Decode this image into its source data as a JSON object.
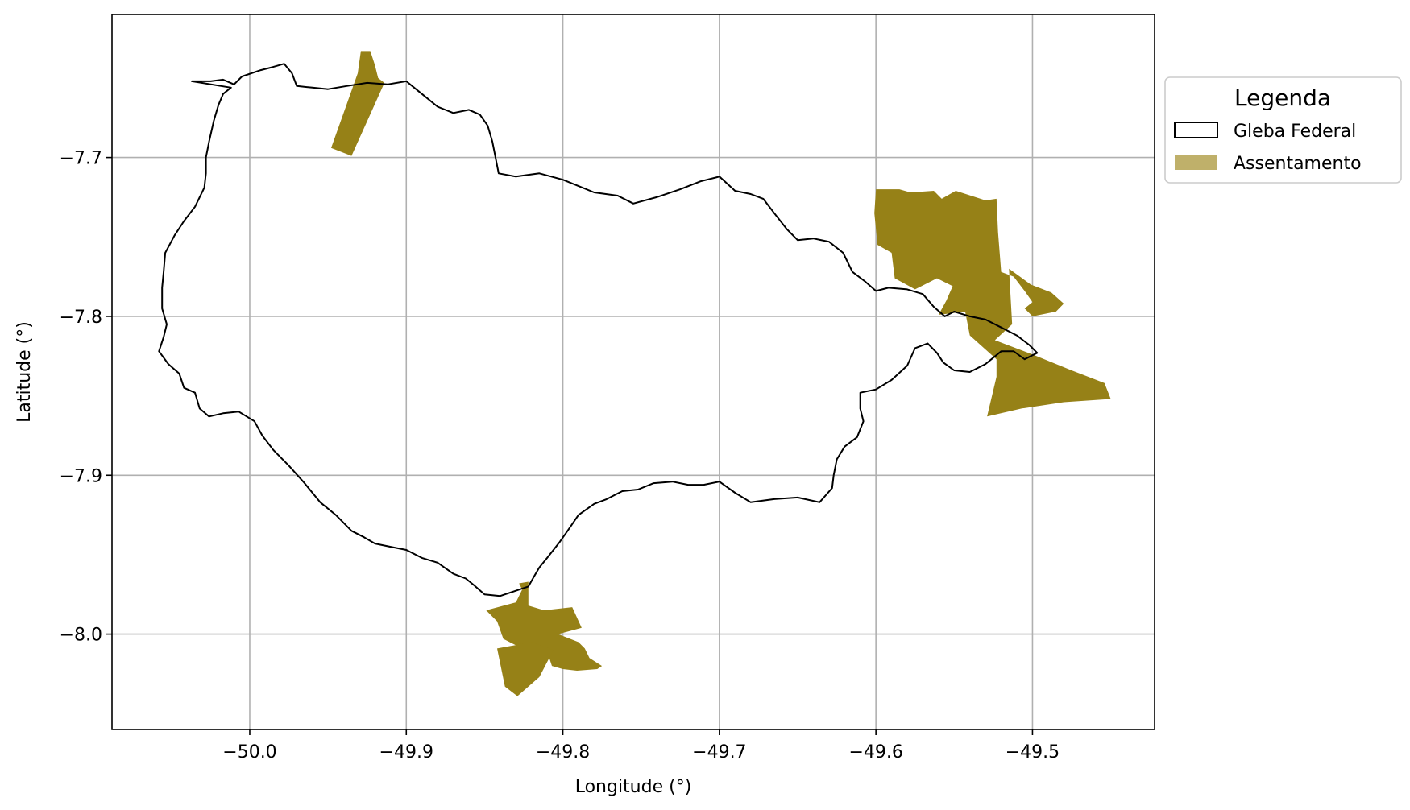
{
  "map": {
    "xlabel": "Longitude (°)",
    "ylabel": "Latitude (°)",
    "xlim": [
      -50.088,
      -49.422
    ],
    "ylim": [
      -8.06,
      -7.61
    ],
    "x_ticks": [
      -50.0,
      -49.9,
      -49.8,
      -49.7,
      -49.6,
      -49.5
    ],
    "x_tick_labels": [
      "−50.0",
      "−49.9",
      "−49.8",
      "−49.7",
      "−49.6",
      "−49.5"
    ],
    "y_ticks": [
      -7.7,
      -7.8,
      -7.9,
      -8.0
    ],
    "y_tick_labels": [
      "−7.7",
      "−7.8",
      "−7.9",
      "−8.0"
    ],
    "grid": true,
    "colors": {
      "gleba_edge": "#000000",
      "gleba_fill": "none",
      "assentamento_fill": "#968117",
      "assentamento_legend_fill": "#bfb06a",
      "grid": "#b0b0b0"
    }
  },
  "legend": {
    "title": "Legenda",
    "placement": "outside-right-top",
    "items": [
      {
        "label": "Gleba Federal",
        "style": "outline"
      },
      {
        "label": "Assentamento",
        "style": "filled"
      }
    ]
  },
  "gleba_federal": [
    [
      -50.037,
      -7.652
    ],
    [
      -50.025,
      -7.652
    ],
    [
      -50.017,
      -7.651
    ],
    [
      -50.01,
      -7.654
    ],
    [
      -50.005,
      -7.649
    ],
    [
      -49.993,
      -7.645
    ],
    [
      -49.985,
      -7.643
    ],
    [
      -49.978,
      -7.641
    ],
    [
      -49.973,
      -7.647
    ],
    [
      -49.97,
      -7.655
    ],
    [
      -49.96,
      -7.656
    ],
    [
      -49.95,
      -7.657
    ],
    [
      -49.938,
      -7.655
    ],
    [
      -49.925,
      -7.653
    ],
    [
      -49.912,
      -7.654
    ],
    [
      -49.9,
      -7.652
    ],
    [
      -49.89,
      -7.66
    ],
    [
      -49.88,
      -7.668
    ],
    [
      -49.87,
      -7.672
    ],
    [
      -49.86,
      -7.67
    ],
    [
      -49.853,
      -7.673
    ],
    [
      -49.848,
      -7.68
    ],
    [
      -49.845,
      -7.69
    ],
    [
      -49.843,
      -7.7
    ],
    [
      -49.841,
      -7.71
    ],
    [
      -49.83,
      -7.712
    ],
    [
      -49.815,
      -7.71
    ],
    [
      -49.8,
      -7.714
    ],
    [
      -49.79,
      -7.718
    ],
    [
      -49.78,
      -7.722
    ],
    [
      -49.765,
      -7.724
    ],
    [
      -49.755,
      -7.729
    ],
    [
      -49.74,
      -7.725
    ],
    [
      -49.725,
      -7.72
    ],
    [
      -49.712,
      -7.715
    ],
    [
      -49.7,
      -7.712
    ],
    [
      -49.69,
      -7.721
    ],
    [
      -49.68,
      -7.723
    ],
    [
      -49.672,
      -7.726
    ],
    [
      -49.665,
      -7.735
    ],
    [
      -49.657,
      -7.745
    ],
    [
      -49.65,
      -7.752
    ],
    [
      -49.64,
      -7.751
    ],
    [
      -49.63,
      -7.753
    ],
    [
      -49.621,
      -7.76
    ],
    [
      -49.615,
      -7.772
    ],
    [
      -49.607,
      -7.778
    ],
    [
      -49.6,
      -7.784
    ],
    [
      -49.592,
      -7.782
    ],
    [
      -49.58,
      -7.783
    ],
    [
      -49.57,
      -7.786
    ],
    [
      -49.563,
      -7.794
    ],
    [
      -49.556,
      -7.8
    ],
    [
      -49.55,
      -7.797
    ],
    [
      -49.54,
      -7.8
    ],
    [
      -49.53,
      -7.802
    ],
    [
      -49.52,
      -7.807
    ],
    [
      -49.51,
      -7.812
    ],
    [
      -49.502,
      -7.818
    ],
    [
      -49.497,
      -7.823
    ],
    [
      -49.505,
      -7.827
    ],
    [
      -49.512,
      -7.822
    ],
    [
      -49.52,
      -7.822
    ],
    [
      -49.525,
      -7.826
    ],
    [
      -49.53,
      -7.83
    ],
    [
      -49.54,
      -7.835
    ],
    [
      -49.55,
      -7.834
    ],
    [
      -49.557,
      -7.829
    ],
    [
      -49.561,
      -7.823
    ],
    [
      -49.567,
      -7.817
    ],
    [
      -49.575,
      -7.82
    ],
    [
      -49.58,
      -7.831
    ],
    [
      -49.59,
      -7.84
    ],
    [
      -49.6,
      -7.846
    ],
    [
      -49.61,
      -7.848
    ],
    [
      -49.61,
      -7.858
    ],
    [
      -49.608,
      -7.866
    ],
    [
      -49.612,
      -7.876
    ],
    [
      -49.62,
      -7.882
    ],
    [
      -49.625,
      -7.89
    ],
    [
      -49.627,
      -7.9
    ],
    [
      -49.628,
      -7.908
    ],
    [
      -49.636,
      -7.917
    ],
    [
      -49.65,
      -7.914
    ],
    [
      -49.665,
      -7.915
    ],
    [
      -49.68,
      -7.917
    ],
    [
      -49.69,
      -7.911
    ],
    [
      -49.7,
      -7.904
    ],
    [
      -49.71,
      -7.906
    ],
    [
      -49.72,
      -7.906
    ],
    [
      -49.73,
      -7.904
    ],
    [
      -49.742,
      -7.905
    ],
    [
      -49.752,
      -7.909
    ],
    [
      -49.762,
      -7.91
    ],
    [
      -49.772,
      -7.915
    ],
    [
      -49.78,
      -7.918
    ],
    [
      -49.79,
      -7.925
    ],
    [
      -49.797,
      -7.935
    ],
    [
      -49.802,
      -7.942
    ],
    [
      -49.81,
      -7.952
    ],
    [
      -49.815,
      -7.958
    ],
    [
      -49.818,
      -7.963
    ],
    [
      -49.822,
      -7.97
    ],
    [
      -49.828,
      -7.972
    ],
    [
      -49.84,
      -7.976
    ],
    [
      -49.85,
      -7.975
    ],
    [
      -49.857,
      -7.969
    ],
    [
      -49.862,
      -7.965
    ],
    [
      -49.87,
      -7.962
    ],
    [
      -49.88,
      -7.955
    ],
    [
      -49.89,
      -7.952
    ],
    [
      -49.9,
      -7.947
    ],
    [
      -49.91,
      -7.945
    ],
    [
      -49.92,
      -7.943
    ],
    [
      -49.927,
      -7.939
    ],
    [
      -49.935,
      -7.935
    ],
    [
      -49.945,
      -7.925
    ],
    [
      -49.955,
      -7.917
    ],
    [
      -49.965,
      -7.905
    ],
    [
      -49.975,
      -7.894
    ],
    [
      -49.985,
      -7.884
    ],
    [
      -49.992,
      -7.875
    ],
    [
      -49.997,
      -7.866
    ],
    [
      -50.007,
      -7.86
    ],
    [
      -50.017,
      -7.861
    ],
    [
      -50.026,
      -7.863
    ],
    [
      -50.032,
      -7.858
    ],
    [
      -50.035,
      -7.848
    ],
    [
      -50.042,
      -7.845
    ],
    [
      -50.045,
      -7.836
    ],
    [
      -50.052,
      -7.83
    ],
    [
      -50.058,
      -7.822
    ],
    [
      -50.055,
      -7.813
    ],
    [
      -50.053,
      -7.805
    ],
    [
      -50.056,
      -7.795
    ],
    [
      -50.056,
      -7.782
    ],
    [
      -50.055,
      -7.772
    ],
    [
      -50.054,
      -7.76
    ],
    [
      -50.048,
      -7.749
    ],
    [
      -50.042,
      -7.74
    ],
    [
      -50.035,
      -7.731
    ],
    [
      -50.029,
      -7.719
    ],
    [
      -50.028,
      -7.71
    ],
    [
      -50.028,
      -7.7
    ],
    [
      -50.026,
      -7.69
    ],
    [
      -50.023,
      -7.677
    ],
    [
      -50.02,
      -7.667
    ],
    [
      -50.017,
      -7.66
    ],
    [
      -50.012,
      -7.656
    ],
    [
      -50.037,
      -7.652
    ]
  ],
  "assentamentos": [
    [
      [
        -49.929,
        -7.633
      ],
      [
        -49.923,
        -7.633
      ],
      [
        -49.92,
        -7.642
      ],
      [
        -49.918,
        -7.65
      ],
      [
        -49.914,
        -7.653
      ],
      [
        -49.935,
        -7.699
      ],
      [
        -49.948,
        -7.694
      ],
      [
        -49.931,
        -7.647
      ]
    ],
    [
      [
        -49.6,
        -7.72
      ],
      [
        -49.585,
        -7.72
      ],
      [
        -49.578,
        -7.722
      ],
      [
        -49.563,
        -7.721
      ],
      [
        -49.558,
        -7.726
      ],
      [
        -49.549,
        -7.721
      ],
      [
        -49.53,
        -7.727
      ],
      [
        -49.523,
        -7.726
      ],
      [
        -49.522,
        -7.747
      ],
      [
        -49.52,
        -7.772
      ],
      [
        -49.512,
        -7.775
      ],
      [
        -49.505,
        -7.784
      ],
      [
        -49.5,
        -7.791
      ],
      [
        -49.505,
        -7.795
      ],
      [
        -49.5,
        -7.8
      ],
      [
        -49.485,
        -7.797
      ],
      [
        -49.48,
        -7.792
      ],
      [
        -49.488,
        -7.785
      ],
      [
        -49.501,
        -7.78
      ],
      [
        -49.515,
        -7.77
      ],
      [
        -49.513,
        -7.805
      ],
      [
        -49.524,
        -7.815
      ],
      [
        -49.5,
        -7.824
      ],
      [
        -49.475,
        -7.834
      ],
      [
        -49.454,
        -7.842
      ],
      [
        -49.45,
        -7.852
      ],
      [
        -49.48,
        -7.854
      ],
      [
        -49.507,
        -7.858
      ],
      [
        -49.529,
        -7.863
      ],
      [
        -49.523,
        -7.838
      ],
      [
        -49.523,
        -7.827
      ],
      [
        -49.54,
        -7.812
      ],
      [
        -49.543,
        -7.797
      ],
      [
        -49.56,
        -7.799
      ],
      [
        -49.555,
        -7.79
      ],
      [
        -49.551,
        -7.781
      ],
      [
        -49.561,
        -7.776
      ],
      [
        -49.575,
        -7.783
      ],
      [
        -49.588,
        -7.776
      ],
      [
        -49.59,
        -7.76
      ],
      [
        -49.599,
        -7.755
      ],
      [
        -49.601,
        -7.735
      ]
    ],
    [
      [
        -49.822,
        -7.967
      ],
      [
        -49.822,
        -7.982
      ],
      [
        -49.812,
        -7.985
      ],
      [
        -49.794,
        -7.983
      ],
      [
        -49.788,
        -7.996
      ],
      [
        -49.803,
        -8.0
      ],
      [
        -49.79,
        -8.005
      ],
      [
        -49.786,
        -8.009
      ],
      [
        -49.783,
        -8.015
      ],
      [
        -49.775,
        -8.02
      ],
      [
        -49.778,
        -8.022
      ],
      [
        -49.791,
        -8.023
      ],
      [
        -49.8,
        -8.022
      ],
      [
        -49.807,
        -8.02
      ],
      [
        -49.811,
        -8.008
      ],
      [
        -49.818,
        -8.013
      ],
      [
        -49.838,
        -8.003
      ],
      [
        -49.842,
        -7.992
      ],
      [
        -49.849,
        -7.985
      ],
      [
        -49.83,
        -7.98
      ],
      [
        -49.826,
        -7.972
      ],
      [
        -49.828,
        -7.968
      ]
    ],
    [
      [
        -49.842,
        -8.009
      ],
      [
        -49.837,
        -8.033
      ],
      [
        -49.829,
        -8.039
      ],
      [
        -49.815,
        -8.027
      ],
      [
        -49.806,
        -8.01
      ],
      [
        -49.82,
        -8.005
      ]
    ]
  ]
}
